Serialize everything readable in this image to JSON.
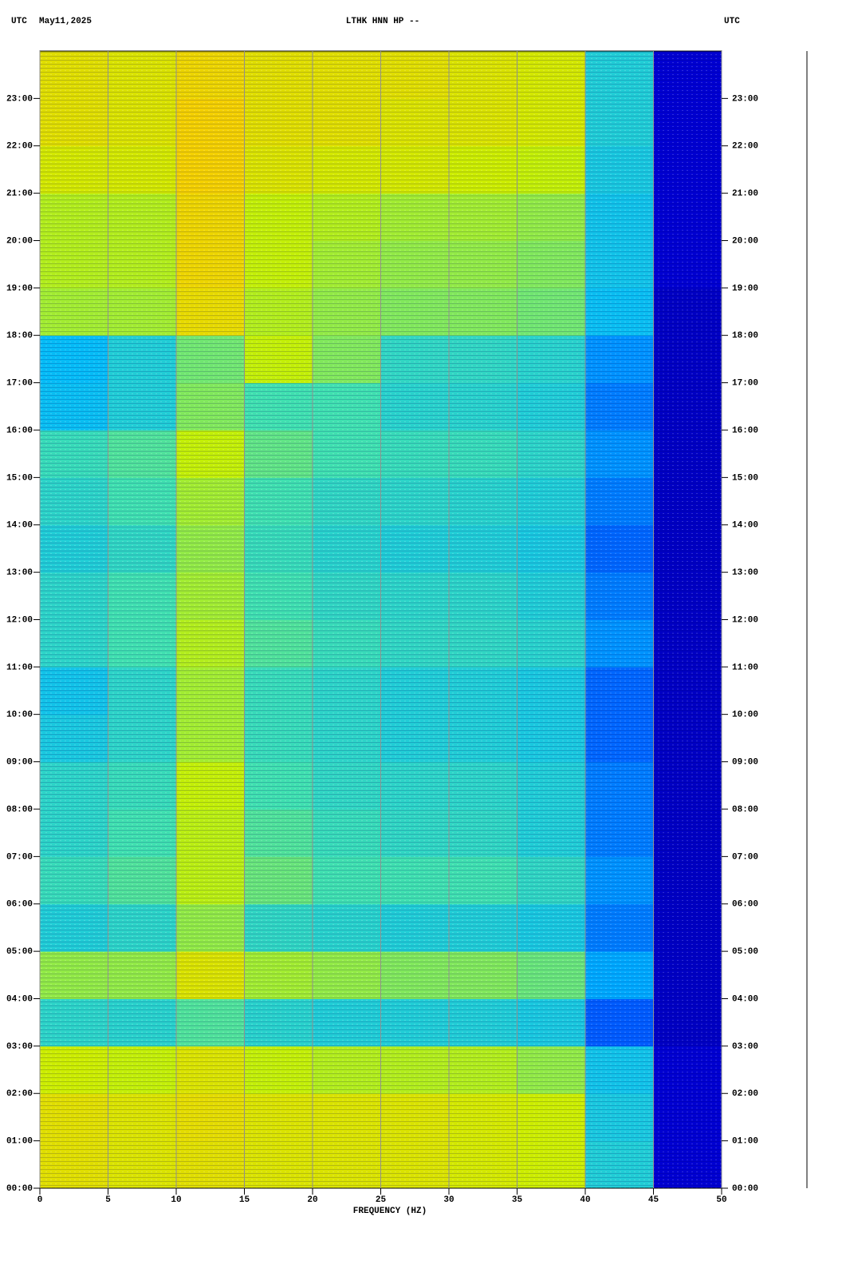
{
  "chart_data": {
    "type": "heatmap",
    "title": "LTHK HNN HP --",
    "left_label": "UTC",
    "date": "May11,2025",
    "right_label": "UTC",
    "xlabel": "FREQUENCY (HZ)",
    "xlim": [
      0,
      50
    ],
    "xticks": [
      0,
      5,
      10,
      15,
      20,
      25,
      30,
      35,
      40,
      45,
      50
    ],
    "ylim": [
      0,
      24
    ],
    "yticks": [
      {
        "value": 0,
        "label": "00:00"
      },
      {
        "value": 1,
        "label": "01:00"
      },
      {
        "value": 2,
        "label": "02:00"
      },
      {
        "value": 3,
        "label": "03:00"
      },
      {
        "value": 4,
        "label": "04:00"
      },
      {
        "value": 5,
        "label": "05:00"
      },
      {
        "value": 6,
        "label": "06:00"
      },
      {
        "value": 7,
        "label": "07:00"
      },
      {
        "value": 8,
        "label": "08:00"
      },
      {
        "value": 9,
        "label": "09:00"
      },
      {
        "value": 10,
        "label": "10:00"
      },
      {
        "value": 11,
        "label": "11:00"
      },
      {
        "value": 12,
        "label": "12:00"
      },
      {
        "value": 13,
        "label": "13:00"
      },
      {
        "value": 14,
        "label": "14:00"
      },
      {
        "value": 15,
        "label": "15:00"
      },
      {
        "value": 16,
        "label": "16:00"
      },
      {
        "value": 17,
        "label": "17:00"
      },
      {
        "value": 18,
        "label": "18:00"
      },
      {
        "value": 19,
        "label": "19:00"
      },
      {
        "value": 20,
        "label": "20:00"
      },
      {
        "value": 21,
        "label": "21:00"
      },
      {
        "value": 22,
        "label": "22:00"
      },
      {
        "value": 23,
        "label": "23:00"
      }
    ],
    "grid": true,
    "clim": [
      0,
      1
    ],
    "colormap": [
      "#00008b",
      "#0000ff",
      "#00b8ff",
      "#40e0b0",
      "#c8f000",
      "#ffc800",
      "#d01800"
    ],
    "z": [
      [
        0.74,
        0.72,
        0.74,
        0.72,
        0.72,
        0.72,
        0.7,
        0.68,
        0.42,
        0.1
      ],
      [
        0.74,
        0.72,
        0.75,
        0.72,
        0.72,
        0.72,
        0.7,
        0.68,
        0.4,
        0.1
      ],
      [
        0.68,
        0.66,
        0.72,
        0.66,
        0.64,
        0.64,
        0.64,
        0.6,
        0.38,
        0.1
      ],
      [
        0.45,
        0.44,
        0.52,
        0.44,
        0.42,
        0.42,
        0.42,
        0.4,
        0.25,
        0.08
      ],
      [
        0.6,
        0.6,
        0.72,
        0.62,
        0.6,
        0.58,
        0.58,
        0.55,
        0.32,
        0.08
      ],
      [
        0.42,
        0.45,
        0.6,
        0.46,
        0.44,
        0.42,
        0.42,
        0.4,
        0.28,
        0.08
      ],
      [
        0.48,
        0.52,
        0.65,
        0.55,
        0.5,
        0.5,
        0.5,
        0.46,
        0.3,
        0.08
      ],
      [
        0.45,
        0.5,
        0.65,
        0.52,
        0.48,
        0.46,
        0.46,
        0.42,
        0.28,
        0.08
      ],
      [
        0.45,
        0.48,
        0.66,
        0.5,
        0.46,
        0.45,
        0.45,
        0.42,
        0.28,
        0.08
      ],
      [
        0.4,
        0.45,
        0.62,
        0.48,
        0.45,
        0.42,
        0.42,
        0.4,
        0.26,
        0.08
      ],
      [
        0.38,
        0.45,
        0.62,
        0.48,
        0.45,
        0.42,
        0.42,
        0.4,
        0.26,
        0.08
      ],
      [
        0.45,
        0.5,
        0.64,
        0.52,
        0.48,
        0.46,
        0.46,
        0.44,
        0.3,
        0.08
      ],
      [
        0.45,
        0.5,
        0.62,
        0.5,
        0.46,
        0.45,
        0.45,
        0.42,
        0.28,
        0.08
      ],
      [
        0.42,
        0.46,
        0.6,
        0.48,
        0.44,
        0.42,
        0.42,
        0.4,
        0.26,
        0.08
      ],
      [
        0.45,
        0.5,
        0.62,
        0.5,
        0.46,
        0.45,
        0.44,
        0.42,
        0.28,
        0.08
      ],
      [
        0.48,
        0.52,
        0.66,
        0.54,
        0.5,
        0.48,
        0.48,
        0.45,
        0.3,
        0.08
      ],
      [
        0.36,
        0.42,
        0.58,
        0.5,
        0.5,
        0.44,
        0.44,
        0.42,
        0.28,
        0.08
      ],
      [
        0.35,
        0.42,
        0.56,
        0.66,
        0.58,
        0.46,
        0.46,
        0.44,
        0.3,
        0.08
      ],
      [
        0.62,
        0.62,
        0.76,
        0.64,
        0.6,
        0.58,
        0.58,
        0.56,
        0.36,
        0.08
      ],
      [
        0.64,
        0.64,
        0.78,
        0.66,
        0.62,
        0.6,
        0.6,
        0.58,
        0.38,
        0.1
      ],
      [
        0.64,
        0.64,
        0.78,
        0.66,
        0.64,
        0.62,
        0.62,
        0.6,
        0.38,
        0.1
      ],
      [
        0.7,
        0.7,
        0.8,
        0.72,
        0.7,
        0.7,
        0.68,
        0.66,
        0.4,
        0.1
      ],
      [
        0.74,
        0.72,
        0.8,
        0.74,
        0.74,
        0.72,
        0.72,
        0.7,
        0.42,
        0.1
      ],
      [
        0.74,
        0.72,
        0.78,
        0.74,
        0.74,
        0.74,
        0.72,
        0.7,
        0.42,
        0.1
      ]
    ]
  }
}
